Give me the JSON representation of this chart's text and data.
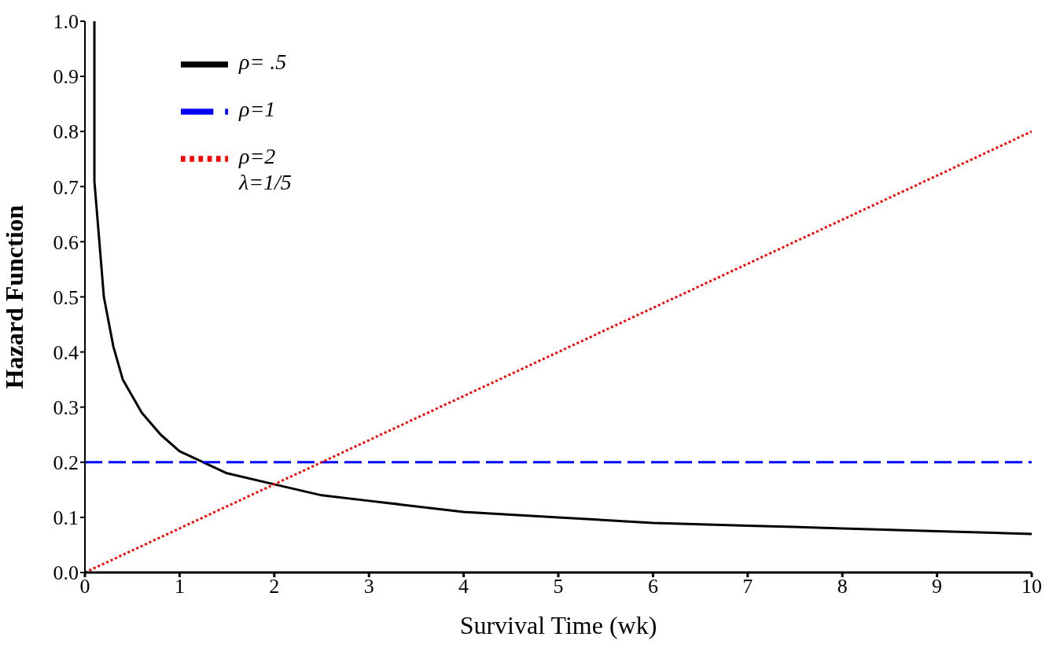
{
  "chart_data": {
    "type": "line",
    "xlabel": "Survival Time (wk)",
    "ylabel": "Hazard Function",
    "xlim": [
      0,
      10
    ],
    "xticks": [
      0,
      1,
      2,
      3,
      4,
      5,
      6,
      7,
      8,
      9,
      10
    ],
    "ylim": [
      0,
      1
    ],
    "yticks": [
      {
        "value": 0,
        "label": "0.0"
      },
      0.1,
      0.2,
      0.3,
      0.4,
      0.5,
      0.6,
      0.7,
      0.8,
      0.9,
      {
        "value": 1,
        "label": "1.0"
      }
    ],
    "grid": false,
    "legend": "top left",
    "marker": "none",
    "annotations": [
      "λ=1/5"
    ],
    "series": [
      {
        "name": "ρ= .5",
        "color": "#000000",
        "line_style": "solid",
        "x": [
          0.1,
          0.1,
          0.2,
          0.3,
          0.4,
          0.5,
          0.6,
          0.8,
          1,
          1.25,
          1.5,
          2,
          2.5,
          3,
          4,
          5,
          6,
          7,
          8,
          9,
          10
        ],
        "values": [
          1,
          0.71,
          0.5,
          0.41,
          0.35,
          0.32,
          0.29,
          0.25,
          0.22,
          0.2,
          0.18,
          0.16,
          0.14,
          0.13,
          0.11,
          0.1,
          0.09,
          0.085,
          0.08,
          0.075,
          0.07
        ]
      },
      {
        "name": "ρ=1",
        "color": "#0000ff",
        "line_style": "dashed",
        "x": [
          0,
          10
        ],
        "values": [
          0.2,
          0.2
        ]
      },
      {
        "name": "ρ=2",
        "color": "#ff0000",
        "line_style": "dotted",
        "x": [
          0,
          10
        ],
        "values": [
          0,
          0.8
        ]
      }
    ]
  }
}
